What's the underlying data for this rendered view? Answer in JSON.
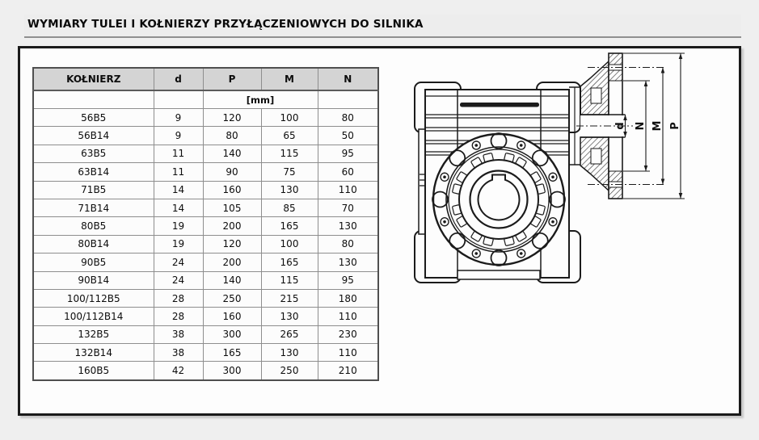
{
  "page": {
    "title": "WYMIARY TULEI I KOŁNIERZY PRZYŁĄCZENIOWYCH DO SILNIKA"
  },
  "table": {
    "columns": [
      "KOŁNIERZ",
      "d",
      "P",
      "M",
      "N"
    ],
    "unit_label": "[mm]",
    "rows": [
      [
        "56B5",
        "9",
        "120",
        "100",
        "80"
      ],
      [
        "56B14",
        "9",
        "80",
        "65",
        "50"
      ],
      [
        "63B5",
        "11",
        "140",
        "115",
        "95"
      ],
      [
        "63B14",
        "11",
        "90",
        "75",
        "60"
      ],
      [
        "71B5",
        "14",
        "160",
        "130",
        "110"
      ],
      [
        "71B14",
        "14",
        "105",
        "85",
        "70"
      ],
      [
        "80B5",
        "19",
        "200",
        "165",
        "130"
      ],
      [
        "80B14",
        "19",
        "120",
        "100",
        "80"
      ],
      [
        "90B5",
        "24",
        "200",
        "165",
        "130"
      ],
      [
        "90B14",
        "24",
        "140",
        "115",
        "95"
      ],
      [
        "100/112B5",
        "28",
        "250",
        "215",
        "180"
      ],
      [
        "100/112B14",
        "28",
        "160",
        "130",
        "110"
      ],
      [
        "132B5",
        "38",
        "300",
        "265",
        "230"
      ],
      [
        "132B14",
        "38",
        "165",
        "130",
        "110"
      ],
      [
        "160B5",
        "42",
        "300",
        "250",
        "210"
      ]
    ]
  },
  "drawing": {
    "dimension_labels": {
      "bore": "d",
      "spigot": "N",
      "bolt_circle": "M",
      "outer": "P"
    }
  },
  "colors": {
    "page_bg": "#efefef",
    "box_border": "#1a1a1a",
    "table_header_bg": "#d4d4d4",
    "table_border": "#4f4f4f",
    "line": "#1b1b1b"
  }
}
